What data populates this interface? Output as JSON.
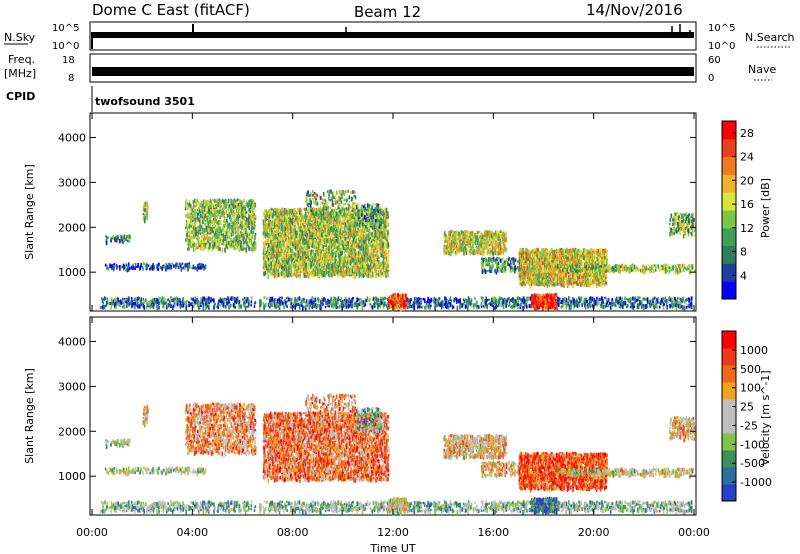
{
  "header": {
    "title": "Dome C East (fitACF)",
    "beam": "Beam 12",
    "date": "14/Nov/2016"
  },
  "summary_panels": {
    "nsky": {
      "label": "N.Sky",
      "left_ticks": [
        "10^5",
        "10^0"
      ]
    },
    "nsearch": {
      "label": "N.Search",
      "right_ticks": [
        "10^5",
        "10^0"
      ]
    },
    "freq": {
      "label_line1": "Freq.",
      "label_line2": "[MHz]",
      "left_ticks": [
        "18",
        "8"
      ]
    },
    "nave": {
      "label": "Nave",
      "right_ticks": [
        "60",
        "0"
      ]
    },
    "cpid": {
      "label": "CPID",
      "program": "twofsound 3501"
    }
  },
  "colors": {
    "power_scale": [
      "#0000ff",
      "#1f3f9f",
      "#2e7d5c",
      "#3fa05a",
      "#7ac943",
      "#d8e63c",
      "#f2b02e",
      "#f07b1f",
      "#e8401a",
      "#ff0000"
    ],
    "velocity_scale": [
      "#2a3fc9",
      "#2a6fa0",
      "#3f8f5a",
      "#7ec648",
      "#bfbfbf",
      "#bfbfbf",
      "#f2a31d",
      "#ee6a1a",
      "#ee3a18",
      "#ff0000"
    ]
  },
  "chart_data": [
    {
      "type": "heatmap",
      "title": "Power",
      "ylabel": "Slant Range [km]",
      "xlabel": "",
      "ylim": [
        180,
        4500
      ],
      "xlim": [
        "00:00",
        "24:00"
      ],
      "y_ticks": [
        "1000",
        "2000",
        "3000",
        "4000"
      ],
      "colorbar": {
        "label": "Power [dB]",
        "ticks": [
          "4",
          "8",
          "12",
          "16",
          "20",
          "24",
          "28"
        ],
        "range": [
          0,
          30
        ]
      }
    },
    {
      "type": "heatmap",
      "title": "Velocity",
      "ylabel": "Slant Range [km]",
      "xlabel": "Time UT",
      "ylim": [
        180,
        4500
      ],
      "xlim": [
        "00:00",
        "24:00"
      ],
      "x_ticks": [
        "00:00",
        "04:00",
        "08:00",
        "12:00",
        "16:00",
        "20:00",
        "00:00"
      ],
      "y_ticks": [
        "1000",
        "2000",
        "3000",
        "4000"
      ],
      "colorbar": {
        "label": "Velocity [m s^-1]",
        "ticks": [
          "1000",
          "500",
          "100",
          "25",
          "-25",
          "-100",
          "-500",
          "-1000"
        ]
      }
    }
  ]
}
